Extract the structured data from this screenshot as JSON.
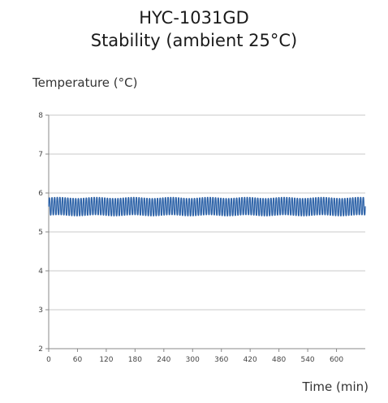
{
  "chart_data": {
    "type": "line",
    "title": "HYC-1031GD",
    "subtitle": "Stability (ambient 25°C)",
    "ylabel": "Temperature (°C)",
    "xlabel": "Time (min)",
    "xlim": [
      0,
      660
    ],
    "ylim": [
      2,
      8
    ],
    "x_ticks": [
      0,
      60,
      120,
      180,
      240,
      300,
      360,
      420,
      480,
      540,
      600
    ],
    "y_ticks": [
      2,
      3,
      4,
      5,
      6,
      7,
      8
    ],
    "grid": "horizontal",
    "legend": "none",
    "series_color": "#2e63a8",
    "series": [
      {
        "oscillation": {
          "min": 5.35,
          "max": 5.95,
          "period_min": 5.5,
          "x_start": 0,
          "x_end": 660
        }
      }
    ]
  }
}
